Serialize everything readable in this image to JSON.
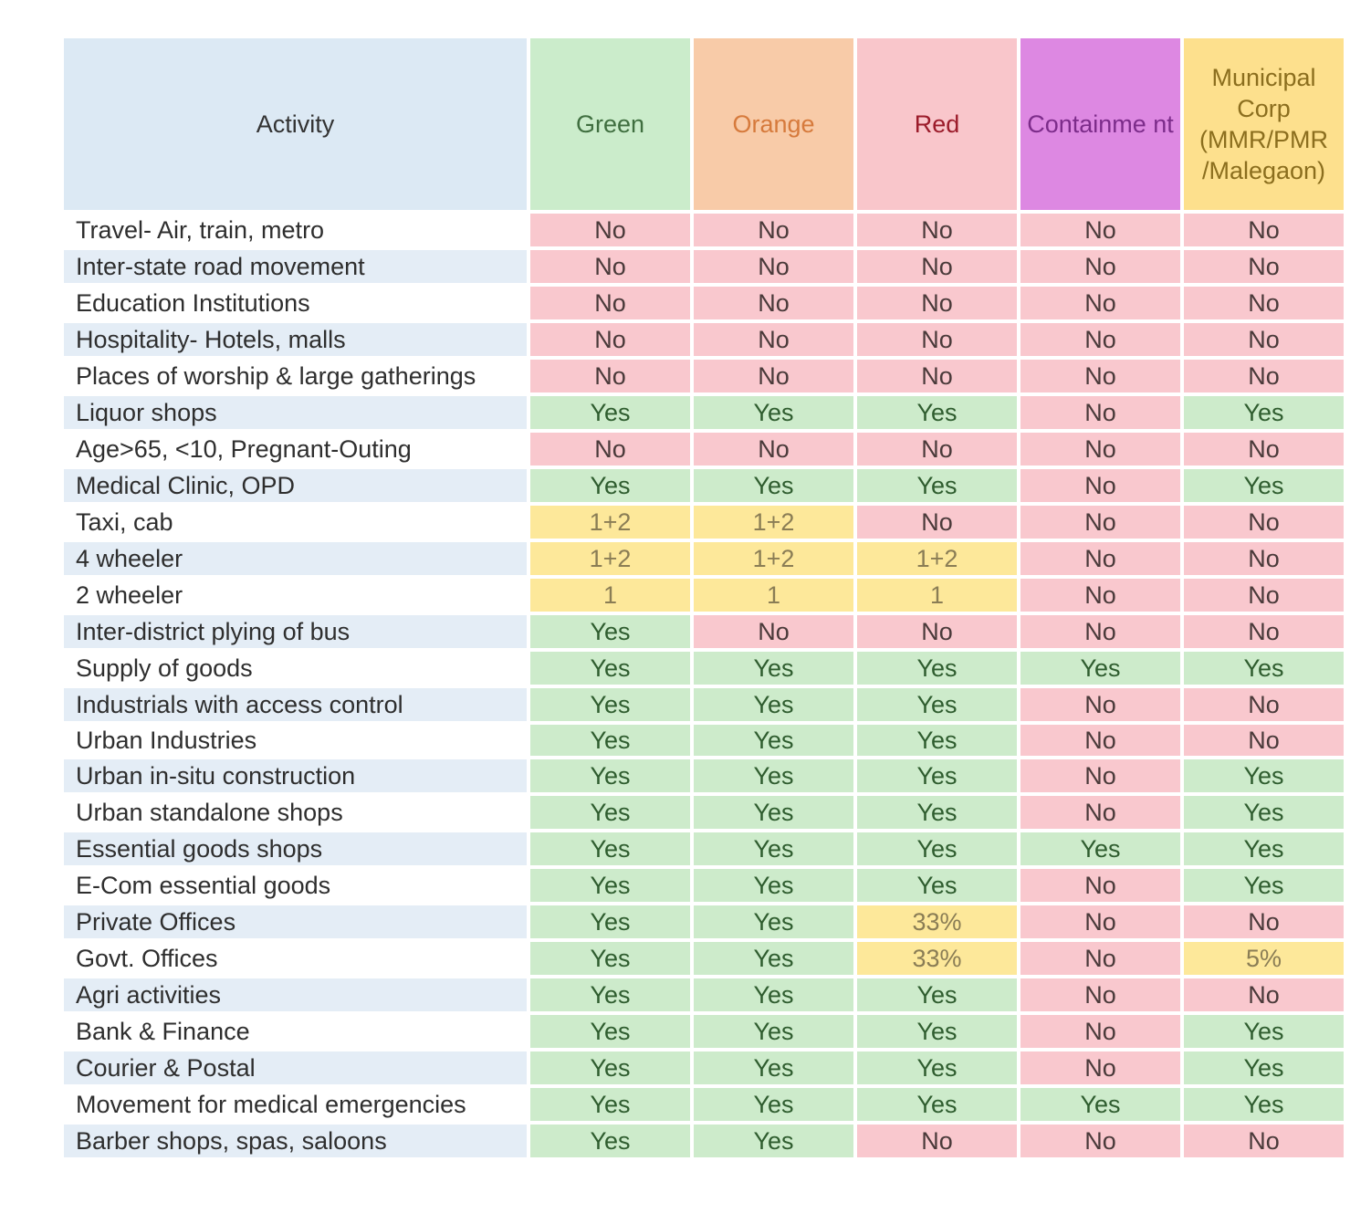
{
  "header": {
    "activity": "Activity",
    "green": "Green",
    "orange": "Orange",
    "red": "Red",
    "containment": "Containme nt",
    "municipal": "Municipal Corp (MMR/PMR /Malegaon)"
  },
  "colors": {
    "no": "#f9c8ce",
    "yes": "#cdebcb",
    "partial": "#fde89a",
    "header_activity": "#dce9f4",
    "header_green": "#cbeccb",
    "header_orange": "#f8cba8",
    "header_red": "#f9c6cb",
    "header_containment": "#dd88e2",
    "header_municipal": "#fde08d"
  },
  "rows": [
    {
      "activity": "Travel- Air, train, metro",
      "green": "No",
      "orange": "No",
      "red": "No",
      "containment": "No",
      "municipal": "No"
    },
    {
      "activity": "Inter-state road movement",
      "green": "No",
      "orange": "No",
      "red": "No",
      "containment": "No",
      "municipal": "No"
    },
    {
      "activity": "Education Institutions",
      "green": "No",
      "orange": "No",
      "red": "No",
      "containment": "No",
      "municipal": "No"
    },
    {
      "activity": "Hospitality- Hotels, malls",
      "green": "No",
      "orange": "No",
      "red": "No",
      "containment": "No",
      "municipal": "No"
    },
    {
      "activity": "Places of worship & large gatherings",
      "green": "No",
      "orange": "No",
      "red": "No",
      "containment": "No",
      "municipal": "No"
    },
    {
      "activity": "Liquor shops",
      "green": "Yes",
      "orange": "Yes",
      "red": "Yes",
      "containment": "No",
      "municipal": "Yes"
    },
    {
      "activity": "Age>65, <10, Pregnant-Outing",
      "green": "No",
      "orange": "No",
      "red": "No",
      "containment": "No",
      "municipal": "No"
    },
    {
      "activity": "Medical Clinic, OPD",
      "green": "Yes",
      "orange": "Yes",
      "red": "Yes",
      "containment": "No",
      "municipal": "Yes"
    },
    {
      "activity": "Taxi, cab",
      "green": "1+2",
      "orange": "1+2",
      "red": "No",
      "containment": "No",
      "municipal": "No"
    },
    {
      "activity": "4 wheeler",
      "green": "1+2",
      "orange": "1+2",
      "red": "1+2",
      "containment": "No",
      "municipal": "No"
    },
    {
      "activity": "2 wheeler",
      "green": "1",
      "orange": "1",
      "red": "1",
      "containment": "No",
      "municipal": "No"
    },
    {
      "activity": "Inter-district plying of bus",
      "green": "Yes",
      "orange": "No",
      "red": "No",
      "containment": "No",
      "municipal": "No"
    },
    {
      "activity": "Supply of goods",
      "green": "Yes",
      "orange": "Yes",
      "red": "Yes",
      "containment": "Yes",
      "municipal": "Yes"
    },
    {
      "activity": "Industrials with access control",
      "green": "Yes",
      "orange": "Yes",
      "red": "Yes",
      "containment": "No",
      "municipal": "No"
    },
    {
      "activity": "Urban Industries",
      "green": "Yes",
      "orange": "Yes",
      "red": "Yes",
      "containment": "No",
      "municipal": "No"
    },
    {
      "activity": "Urban in-situ construction",
      "green": "Yes",
      "orange": "Yes",
      "red": "Yes",
      "containment": "No",
      "municipal": "Yes"
    },
    {
      "activity": "Urban standalone shops",
      "green": "Yes",
      "orange": "Yes",
      "red": "Yes",
      "containment": "No",
      "municipal": "Yes"
    },
    {
      "activity": "Essential goods shops",
      "green": "Yes",
      "orange": "Yes",
      "red": "Yes",
      "containment": "Yes",
      "municipal": "Yes"
    },
    {
      "activity": "E-Com essential goods",
      "green": "Yes",
      "orange": "Yes",
      "red": "Yes",
      "containment": "No",
      "municipal": "Yes"
    },
    {
      "activity": "Private Offices",
      "green": "Yes",
      "orange": "Yes",
      "red": "33%",
      "containment": "No",
      "municipal": "No"
    },
    {
      "activity": "Govt. Offices",
      "green": "Yes",
      "orange": "Yes",
      "red": "33%",
      "containment": "No",
      "municipal": "5%"
    },
    {
      "activity": "Agri activities",
      "green": "Yes",
      "orange": "Yes",
      "red": "Yes",
      "containment": "No",
      "municipal": "No"
    },
    {
      "activity": "Bank & Finance",
      "green": "Yes",
      "orange": "Yes",
      "red": "Yes",
      "containment": "No",
      "municipal": "Yes"
    },
    {
      "activity": "Courier & Postal",
      "green": "Yes",
      "orange": "Yes",
      "red": "Yes",
      "containment": "No",
      "municipal": "Yes"
    },
    {
      "activity": "Movement for medical emergencies",
      "green": "Yes",
      "orange": "Yes",
      "red": "Yes",
      "containment": "Yes",
      "municipal": "Yes"
    },
    {
      "activity": "Barber shops, spas, saloons",
      "green": "Yes",
      "orange": "Yes",
      "red": "No",
      "containment": "No",
      "municipal": "No"
    }
  ]
}
